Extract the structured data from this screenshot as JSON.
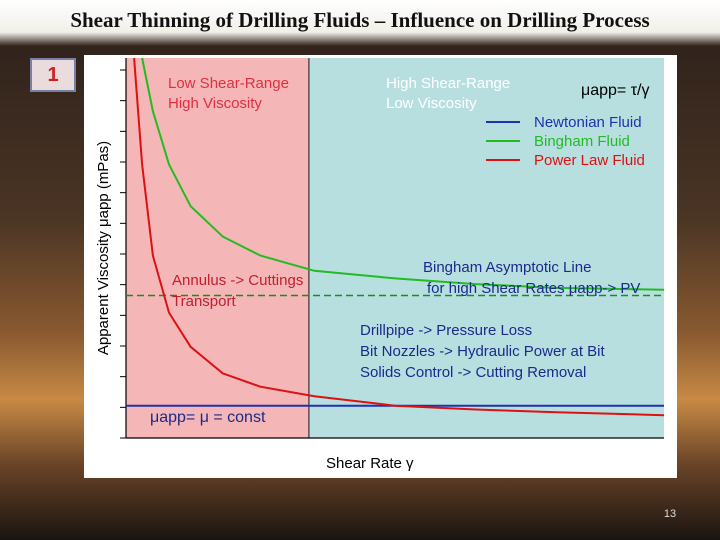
{
  "slide": {
    "title": "Shear Thinning of Drilling Fluids – Influence on Drilling Process",
    "badge": "1",
    "page_number": "13"
  },
  "chart_data": {
    "type": "line",
    "title": "",
    "xlabel": "Shear Rate γ",
    "ylabel": "Apparent Viscosity μapp (mPas)",
    "xlim": [
      0,
      1
    ],
    "ylim": [
      0,
      1
    ],
    "x_ticks": 0,
    "y_ticks": 13,
    "regions": [
      {
        "name": "low-shear",
        "x_range": [
          0,
          0.34
        ],
        "color": "#f4b6b6",
        "lines": [
          "Low Shear-Range",
          "High Viscosity"
        ]
      },
      {
        "name": "high-shear",
        "x_range": [
          0.34,
          1
        ],
        "color": "#b8dfe0",
        "lines": [
          "High Shear-Range",
          "Low Viscosity"
        ]
      }
    ],
    "series": [
      {
        "name": "Newtonian Fluid",
        "color": "#2030b0",
        "x": [
          0,
          0.1,
          0.2,
          0.3,
          0.4,
          0.5,
          0.6,
          0.7,
          0.8,
          0.9,
          1.0
        ],
        "y": [
          0.085,
          0.085,
          0.085,
          0.085,
          0.085,
          0.085,
          0.085,
          0.085,
          0.085,
          0.085,
          0.085
        ]
      },
      {
        "name": "Bingham Fluid",
        "color": "#22bb22",
        "x": [
          0.03,
          0.05,
          0.08,
          0.12,
          0.18,
          0.25,
          0.35,
          0.5,
          0.65,
          0.8,
          1.0
        ],
        "y": [
          1.0,
          0.86,
          0.72,
          0.61,
          0.53,
          0.48,
          0.44,
          0.42,
          0.405,
          0.395,
          0.39
        ]
      },
      {
        "name": "Power Law Fluid",
        "color": "#dd1111",
        "x": [
          0.015,
          0.03,
          0.05,
          0.08,
          0.12,
          0.18,
          0.25,
          0.35,
          0.5,
          0.65,
          0.8,
          1.0
        ],
        "y": [
          1.0,
          0.72,
          0.48,
          0.33,
          0.24,
          0.17,
          0.135,
          0.11,
          0.085,
          0.075,
          0.068,
          0.06
        ]
      }
    ],
    "asymptote": {
      "y": 0.375,
      "color": "#1c8a1c"
    },
    "annotations": {
      "app_formula": "μapp= τ/γ",
      "bingham_line": [
        "Bingham Asymptotic Line",
        "for high Shear Rates μapp-> PV"
      ],
      "annulus": [
        "Annulus -> Cuttings",
        "Transport"
      ],
      "drillpipe": [
        "Drillpipe -> Pressure Loss",
        "Bit Nozzles -> Hydraulic Power at Bit",
        "Solids Control -> Cutting Removal"
      ],
      "newtonian_const": "μapp= μ = const"
    },
    "legend_position": "top-right"
  }
}
